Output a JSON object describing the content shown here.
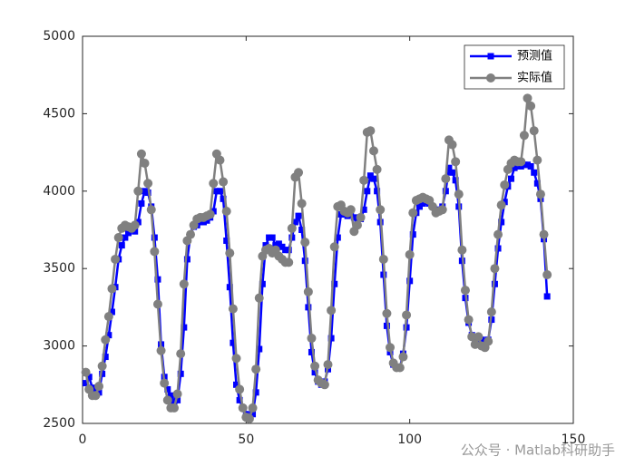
{
  "chart_data": {
    "type": "line",
    "xlim": [
      0,
      150
    ],
    "xticks": [
      0,
      50,
      100,
      150
    ],
    "ylim": [
      2500,
      5000
    ],
    "yticks": [
      2500,
      3000,
      3500,
      4000,
      4500,
      5000
    ],
    "legend": "top-right",
    "series": [
      {
        "name": "预测值",
        "color": "#0000ff",
        "marker": "square",
        "values": [
          2760,
          2800,
          2730,
          2700,
          2700,
          2820,
          2930,
          3070,
          3220,
          3380,
          3560,
          3650,
          3700,
          3730,
          3750,
          3740,
          3800,
          3920,
          4000,
          3990,
          3900,
          3700,
          3430,
          3010,
          2800,
          2720,
          2680,
          2640,
          2650,
          2820,
          3120,
          3560,
          3720,
          3770,
          3780,
          3800,
          3800,
          3810,
          3830,
          3870,
          4000,
          4000,
          3950,
          3680,
          3380,
          3020,
          2750,
          2650,
          2600,
          2560,
          2530,
          2560,
          2700,
          2980,
          3400,
          3650,
          3700,
          3700,
          3650,
          3660,
          3640,
          3620,
          3620,
          3700,
          3800,
          3840,
          3750,
          3550,
          3250,
          2960,
          2830,
          2770,
          2750,
          2770,
          2850,
          3050,
          3400,
          3700,
          3850,
          3850,
          3840,
          3850,
          3830,
          3790,
          3820,
          3880,
          4000,
          4100,
          4080,
          4000,
          3800,
          3460,
          3130,
          2960,
          2880,
          2860,
          2860,
          2950,
          3120,
          3420,
          3720,
          3860,
          3900,
          3920,
          3930,
          3920,
          3900,
          3880,
          3880,
          3900,
          4000,
          4150,
          4120,
          4070,
          3900,
          3550,
          3310,
          3150,
          3070,
          3030,
          3040,
          3040,
          3000,
          3040,
          3170,
          3400,
          3630,
          3800,
          3930,
          4030,
          4080,
          4150,
          4160,
          4160,
          4170,
          4170,
          4160,
          4120,
          4050,
          3950,
          3690,
          3320
        ]
      },
      {
        "name": "实际值",
        "color": "#808080",
        "marker": "circle",
        "values": [
          2830,
          2720,
          2680,
          2680,
          2740,
          2870,
          3040,
          3190,
          3370,
          3560,
          3700,
          3760,
          3780,
          3770,
          3760,
          3780,
          4000,
          4240,
          4180,
          4050,
          3880,
          3610,
          3270,
          2970,
          2760,
          2650,
          2600,
          2600,
          2690,
          2950,
          3400,
          3680,
          3720,
          3780,
          3820,
          3830,
          3830,
          3840,
          3850,
          4050,
          4240,
          4200,
          4060,
          3870,
          3600,
          3240,
          2920,
          2720,
          2600,
          2540,
          2530,
          2600,
          2850,
          3310,
          3580,
          3620,
          3630,
          3600,
          3620,
          3580,
          3560,
          3540,
          3540,
          3760,
          4090,
          4120,
          3920,
          3670,
          3350,
          3050,
          2870,
          2780,
          2760,
          2750,
          2880,
          3230,
          3640,
          3900,
          3910,
          3870,
          3860,
          3880,
          3740,
          3780,
          3830,
          4070,
          4380,
          4390,
          4260,
          4140,
          3880,
          3560,
          3210,
          2990,
          2890,
          2860,
          2860,
          2930,
          3200,
          3590,
          3860,
          3940,
          3950,
          3960,
          3950,
          3940,
          3900,
          3860,
          3870,
          3880,
          4080,
          4330,
          4300,
          4190,
          3980,
          3620,
          3360,
          3170,
          3060,
          3010,
          3060,
          3000,
          2990,
          3030,
          3220,
          3500,
          3720,
          3910,
          4040,
          4140,
          4180,
          4200,
          4190,
          4190,
          4360,
          4600,
          4550,
          4390,
          4200,
          3980,
          3720,
          3460
        ]
      }
    ],
    "watermark": "公众号 · Matlab科研助手"
  }
}
